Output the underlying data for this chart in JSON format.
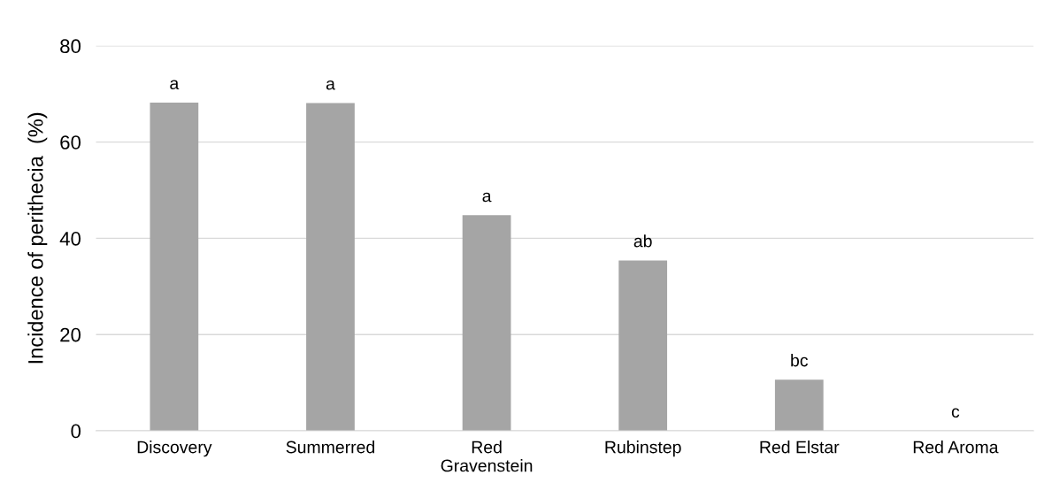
{
  "chart_data": {
    "type": "bar",
    "ylabel": "Incidence of perithecia  (%)",
    "categories": [
      "Discovery",
      "Summerred",
      "Red\nGravenstein",
      "Rubinstep",
      "Red Elstar",
      "Red Aroma"
    ],
    "values": [
      68.2,
      68.1,
      44.8,
      35.4,
      10.6,
      0
    ],
    "color": "#a5a5a5",
    "ylim": [
      0,
      80
    ],
    "yticks": [
      0,
      20,
      40,
      60,
      80
    ],
    "grid": "y",
    "annotations": [
      {
        "text": "a",
        "x": "Discovery",
        "y": 68.2
      },
      {
        "text": "a",
        "x": "Summerred",
        "y": 68.1
      },
      {
        "text": "a",
        "x": "Red\nGravenstein",
        "y": 44.8
      },
      {
        "text": "ab",
        "x": "Rubinstep",
        "y": 35.4
      },
      {
        "text": "bc",
        "x": "Red Elstar",
        "y": 10.6
      },
      {
        "text": "c",
        "x": "Red Aroma",
        "y": 0
      }
    ]
  }
}
